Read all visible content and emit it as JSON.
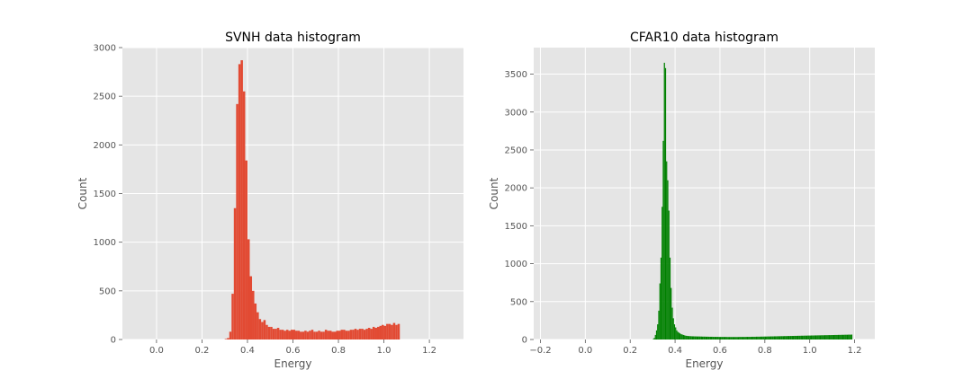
{
  "chart_data": [
    {
      "type": "bar",
      "title": "SVNH data histogram",
      "xlabel": "Energy",
      "ylabel": "Count",
      "xlim": [
        -0.15,
        1.35
      ],
      "ylim": [
        0,
        3000
      ],
      "xticks": [
        0.0,
        0.2,
        0.4,
        0.6,
        0.8,
        1.0,
        1.2
      ],
      "xtick_labels": [
        "0.0",
        "0.2",
        "0.4",
        "0.6",
        "0.8",
        "1.0",
        "1.2"
      ],
      "yticks": [
        0,
        500,
        1000,
        1500,
        2000,
        2500,
        3000
      ],
      "ytick_labels": [
        "0",
        "500",
        "1000",
        "1500",
        "2000",
        "2500",
        "3000"
      ],
      "grid": true,
      "color": "#e24a33",
      "bin_start": 0.0,
      "bin_width": 0.01,
      "counts": [
        0,
        0,
        0,
        0,
        0,
        0,
        0,
        0,
        0,
        0,
        0,
        0,
        0,
        0,
        0,
        0,
        0,
        0,
        0,
        0,
        0,
        0,
        0,
        0,
        0,
        0,
        0,
        0,
        0,
        0,
        5,
        15,
        80,
        470,
        1350,
        2420,
        2830,
        2870,
        2550,
        1840,
        1030,
        650,
        500,
        370,
        280,
        210,
        180,
        200,
        150,
        130,
        130,
        110,
        110,
        120,
        100,
        100,
        90,
        100,
        90,
        100,
        100,
        90,
        90,
        80,
        80,
        90,
        80,
        90,
        100,
        80,
        80,
        90,
        80,
        80,
        100,
        90,
        90,
        80,
        80,
        90,
        90,
        100,
        100,
        90,
        90,
        100,
        100,
        110,
        100,
        110,
        110,
        100,
        110,
        120,
        110,
        130,
        120,
        130,
        140,
        150,
        140,
        160,
        160,
        150,
        170,
        150,
        160
      ]
    },
    {
      "type": "bar",
      "title": "CFAR10 data histogram",
      "xlabel": "Energy",
      "ylabel": "Count",
      "xlim": [
        -0.23,
        1.29
      ],
      "ylim": [
        0,
        3850
      ],
      "xticks": [
        -0.2,
        0.0,
        0.2,
        0.4,
        0.6,
        0.8,
        1.0,
        1.2
      ],
      "xtick_labels": [
        "−0.2",
        "0.0",
        "0.2",
        "0.4",
        "0.6",
        "0.8",
        "1.0",
        "1.2"
      ],
      "yticks": [
        0,
        500,
        1000,
        1500,
        2000,
        2500,
        3000,
        3500
      ],
      "ytick_labels": [
        "0",
        "500",
        "1000",
        "1500",
        "2000",
        "2500",
        "3000",
        "3500"
      ],
      "grid": true,
      "color": "#008000",
      "bin_start": 0.3,
      "bin_width": 0.005,
      "counts": [
        5,
        20,
        60,
        120,
        200,
        380,
        740,
        1080,
        1750,
        2620,
        3650,
        3580,
        2350,
        2100,
        1700,
        1080,
        680,
        420,
        280,
        200,
        160,
        120,
        100,
        90,
        80,
        70,
        65,
        60,
        55,
        50,
        48,
        46,
        45,
        44,
        43,
        42,
        42,
        41,
        41,
        40,
        40,
        40,
        39,
        39,
        38,
        38,
        38,
        37,
        37,
        37,
        36,
        36,
        36,
        36,
        35,
        35,
        35,
        35,
        35,
        34,
        34,
        34,
        34,
        34,
        34,
        34,
        33,
        33,
        33,
        33,
        33,
        33,
        33,
        33,
        33,
        33,
        33,
        34,
        34,
        34,
        34,
        34,
        34,
        35,
        35,
        35,
        35,
        35,
        36,
        36,
        36,
        36,
        37,
        37,
        37,
        37,
        38,
        38,
        38,
        39,
        39,
        39,
        40,
        40,
        40,
        41,
        41,
        41,
        42,
        42,
        42,
        43,
        43,
        43,
        44,
        44,
        44,
        45,
        45,
        45,
        46,
        46,
        46,
        47,
        47,
        47,
        48,
        48,
        48,
        49,
        49,
        49,
        50,
        50,
        50,
        51,
        51,
        51,
        52,
        52,
        52,
        53,
        53,
        53,
        54,
        54,
        54,
        55,
        55,
        55,
        56,
        56,
        56,
        57,
        57,
        57,
        58,
        58,
        58,
        59,
        59,
        59,
        60,
        60,
        60,
        61,
        61,
        61,
        62,
        62,
        62,
        63,
        63,
        63,
        64,
        64,
        64,
        65
      ]
    }
  ]
}
